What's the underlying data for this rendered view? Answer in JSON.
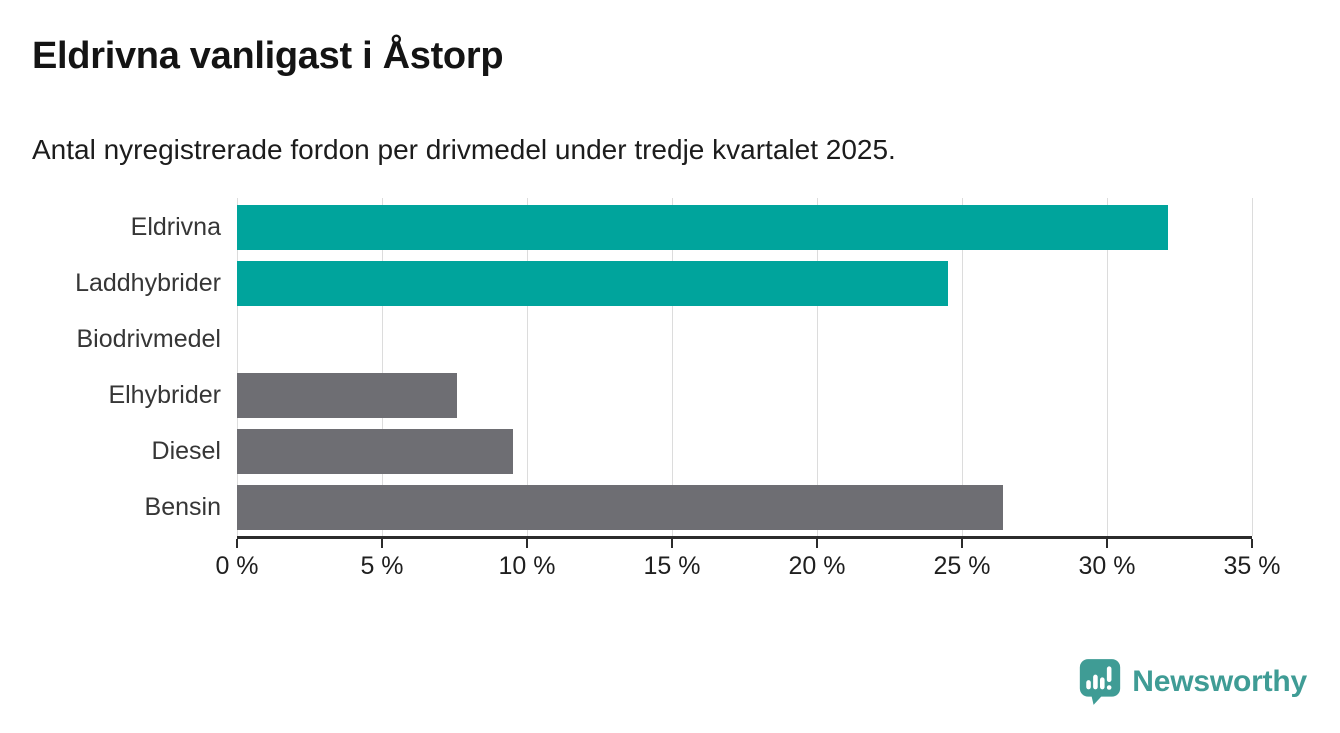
{
  "header": {
    "title": "Eldrivna vanligast i Åstorp",
    "subtitle": "Antal nyregistrerade fordon per drivmedel under tredje kvartalet 2025."
  },
  "chart_data": {
    "type": "bar",
    "orientation": "horizontal",
    "title": "Eldrivna vanligast i Åstorp",
    "subtitle": "Antal nyregistrerade fordon per drivmedel under tredje kvartalet 2025.",
    "categories": [
      "Eldrivna",
      "Laddhybrider",
      "Biodrivmedel",
      "Elhybrider",
      "Diesel",
      "Bensin"
    ],
    "values": [
      32.1,
      24.5,
      0,
      7.6,
      9.5,
      26.4
    ],
    "unit": "%",
    "bar_colors": [
      "#00a49c",
      "#00a49c",
      "#6e6e73",
      "#6e6e73",
      "#6e6e73",
      "#6e6e73"
    ],
    "xlabel": "",
    "ylabel": "",
    "xlim": [
      0,
      35
    ],
    "x_ticks": [
      0,
      5,
      10,
      15,
      20,
      25,
      30,
      35
    ],
    "x_tick_labels": [
      "0 %",
      "5 %",
      "10 %",
      "15 %",
      "20 %",
      "25 %",
      "30 %",
      "35 %"
    ],
    "grid": "vertical-gridlines",
    "legend": "none"
  },
  "footer": {
    "brand": "Newsworthy"
  },
  "colors": {
    "teal": "#00a49c",
    "gray": "#6e6e73",
    "brand_teal": "#3f9c95",
    "axis": "#2b2b2b",
    "gridline": "#dcdcdc"
  }
}
